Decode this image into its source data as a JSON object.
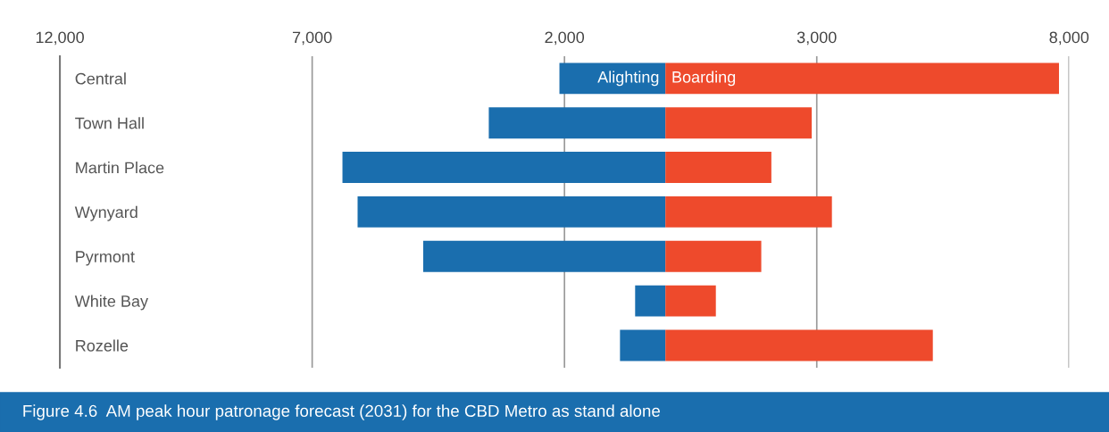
{
  "chart_data": {
    "type": "bar",
    "orientation": "horizontal",
    "stacked": true,
    "title": "Figure 4.6  AM peak hour patronage forecast (2031) for the CBD Metro as stand alone",
    "categories": [
      "Central",
      "Town Hall",
      "Martin Place",
      "Wynyard",
      "Pyrmont",
      "White Bay",
      "Rozelle"
    ],
    "series": [
      {
        "name": "Alighting",
        "color": "#1a6eae",
        "values": [
          -2100,
          -3500,
          -6400,
          -6100,
          -4800,
          -600,
          -900
        ]
      },
      {
        "name": "Boarding",
        "color": "#ee4a2c",
        "values": [
          7800,
          2900,
          2100,
          3300,
          1900,
          1000,
          5300
        ]
      }
    ],
    "xlim": [
      -12000,
      8000
    ],
    "xticks": [
      {
        "value": -12000,
        "label": "12,000"
      },
      {
        "value": -7000,
        "label": "7,000"
      },
      {
        "value": -2000,
        "label": "2,000"
      },
      {
        "value": 3000,
        "label": "3,000"
      },
      {
        "value": 8000,
        "label": "8,000"
      }
    ],
    "grid": "x",
    "legend": false
  }
}
